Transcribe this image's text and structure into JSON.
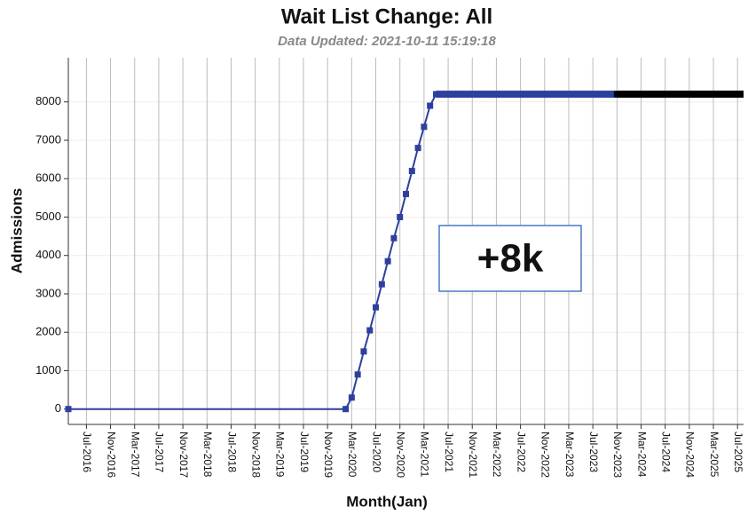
{
  "chart_data": {
    "type": "line",
    "title": "Wait List Change: All",
    "subtitle": "Data Updated: 2021-10-11 15:19:18",
    "x_label": "Month(Jan)",
    "y_label": "Admissions",
    "annotation": "+8k",
    "xlim": [
      "Apr-2016",
      "Aug-2025"
    ],
    "xticks": [
      "Jul-2016",
      "Nov-2016",
      "Mar-2017",
      "Jul-2017",
      "Nov-2017",
      "Mar-2018",
      "Jul-2018",
      "Nov-2018",
      "Mar-2019",
      "Jul-2019",
      "Nov-2019",
      "Mar-2020",
      "Jul-2020",
      "Nov-2020",
      "Mar-2021",
      "Jul-2021",
      "Nov-2021",
      "Mar-2022",
      "Jul-2022",
      "Nov-2022",
      "Mar-2023",
      "Jul-2023",
      "Nov-2023",
      "Mar-2024",
      "Jul-2024",
      "Nov-2024",
      "Mar-2025",
      "Jul-2025"
    ],
    "ylim": [
      -400,
      9150
    ],
    "yticks": [
      0,
      1000,
      2000,
      3000,
      4000,
      5000,
      6000,
      7000,
      8000
    ],
    "grid": true,
    "series": [
      {
        "color": "#2e3f9e",
        "x": [
          "Apr-2016",
          "Feb-2020",
          "Mar-2020",
          "Apr-2020",
          "May-2020",
          "Jun-2020",
          "Jul-2020",
          "Aug-2020",
          "Sep-2020",
          "Oct-2020",
          "Nov-2020",
          "Dec-2020",
          "Jan-2021",
          "Feb-2021",
          "Mar-2021",
          "Apr-2021",
          "May-2021",
          "Nov-2023"
        ],
        "values": [
          0,
          0,
          300,
          900,
          1500,
          2050,
          2650,
          3250,
          3850,
          4450,
          5000,
          5600,
          6200,
          6800,
          7350,
          7900,
          8200,
          8200
        ]
      },
      {
        "color": "#000000",
        "x": [
          "Nov-2023",
          "Aug-2025"
        ],
        "values": [
          8200,
          8200
        ]
      }
    ]
  }
}
